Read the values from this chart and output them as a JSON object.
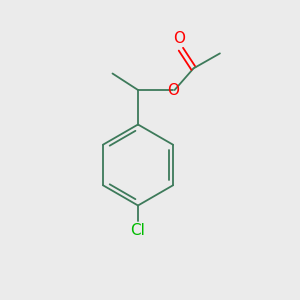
{
  "background_color": "#ebebeb",
  "bond_color": "#3d7a5a",
  "bond_color_dark": "#2a5a3a",
  "bond_width": 1.3,
  "atom_colors": {
    "O": "#ff0000",
    "Cl": "#00bb00",
    "C": "#3d7a5a"
  },
  "font_size_atoms": 11,
  "font_size_cl": 11,
  "fig_bg": "#ebebeb"
}
